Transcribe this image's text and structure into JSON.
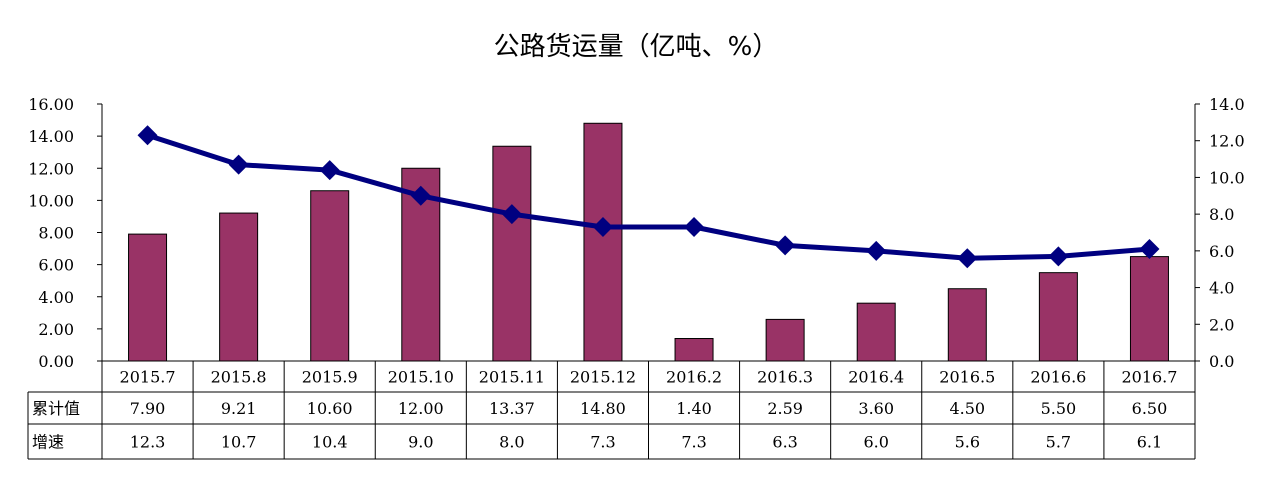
{
  "chart_data": {
    "type": "bar+line",
    "title": "公路货运量（亿吨、%）",
    "categories": [
      "2015.7",
      "2015.8",
      "2015.9",
      "2015.10",
      "2015.11",
      "2015.12",
      "2016.2",
      "2016.3",
      "2016.4",
      "2016.5",
      "2016.6",
      "2016.7"
    ],
    "series": [
      {
        "name": "累计值",
        "type": "bar",
        "axis": "left",
        "color": "#993366",
        "values": [
          7.9,
          9.21,
          10.6,
          12.0,
          13.37,
          14.8,
          1.4,
          2.59,
          3.6,
          4.5,
          5.5,
          6.5
        ],
        "labels": [
          "7.90",
          "9.21",
          "10.60",
          "12.00",
          "13.37",
          "14.80",
          "1.40",
          "2.59",
          "3.60",
          "4.50",
          "5.50",
          "6.50"
        ]
      },
      {
        "name": "增速",
        "type": "line",
        "axis": "right",
        "color": "#000080",
        "values": [
          12.3,
          10.7,
          10.4,
          9.0,
          8.0,
          7.3,
          7.3,
          6.3,
          6.0,
          5.6,
          5.7,
          6.1
        ],
        "labels": [
          "12.3",
          "10.7",
          "10.4",
          "9.0",
          "8.0",
          "7.3",
          "7.3",
          "6.3",
          "6.0",
          "5.6",
          "5.7",
          "6.1"
        ]
      }
    ],
    "left_axis": {
      "ylim": [
        0,
        16
      ],
      "ticks": [
        "0.00",
        "2.00",
        "4.00",
        "6.00",
        "8.00",
        "10.00",
        "12.00",
        "14.00",
        "16.00"
      ]
    },
    "right_axis": {
      "ylim": [
        0,
        14
      ],
      "ticks": [
        "0.0",
        "2.0",
        "4.0",
        "6.0",
        "8.0",
        "10.0",
        "12.0",
        "14.0"
      ]
    },
    "grid": false,
    "legend": "data-table-below"
  }
}
